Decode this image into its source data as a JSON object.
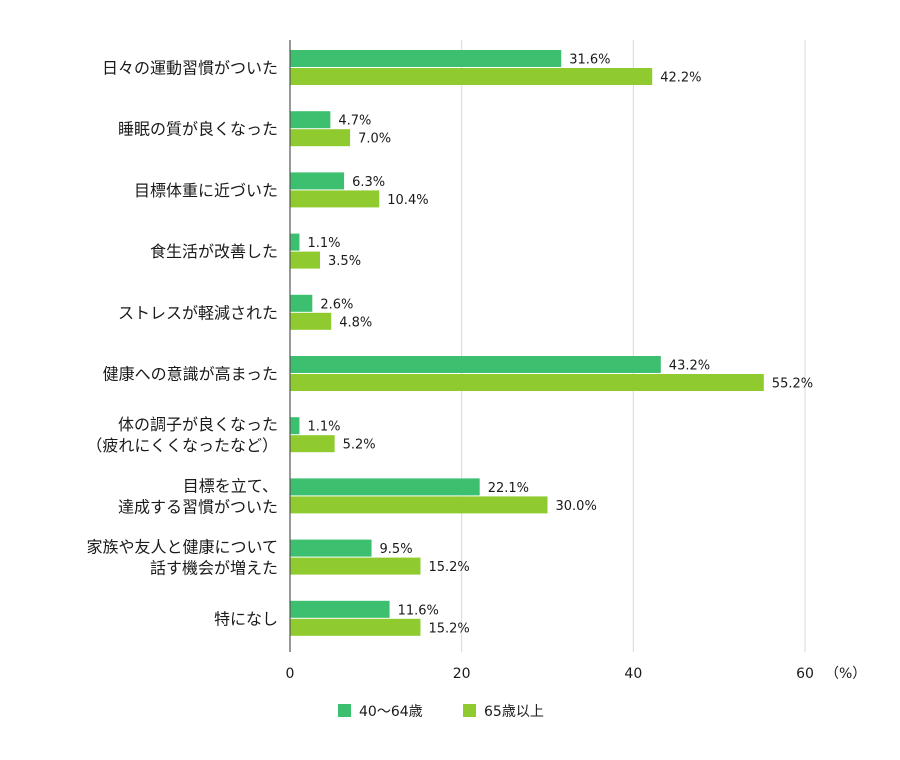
{
  "chart_data": {
    "type": "bar",
    "orientation": "horizontal",
    "categories": [
      [
        "日々の運動習慣がついた"
      ],
      [
        "睡眠の質が良くなった"
      ],
      [
        "目標体重に近づいた"
      ],
      [
        "食生活が改善した"
      ],
      [
        "ストレスが軽減された"
      ],
      [
        "健康への意識が高まった"
      ],
      [
        "体の調子が良くなった",
        "（疲れにくくなったなど）"
      ],
      [
        "目標を立て、",
        "達成する習慣がついた"
      ],
      [
        "家族や友人と健康について",
        "話す機会が増えた"
      ],
      [
        "特になし"
      ]
    ],
    "series": [
      {
        "name": "40〜64歳",
        "color": "#3cbf6e",
        "values": [
          31.6,
          4.7,
          6.3,
          1.1,
          2.6,
          43.2,
          1.1,
          22.1,
          9.5,
          11.6
        ]
      },
      {
        "name": "65歳以上",
        "color": "#8fcb2f",
        "values": [
          42.2,
          7.0,
          10.4,
          3.5,
          4.8,
          55.2,
          5.2,
          30.0,
          15.2,
          15.2
        ]
      }
    ],
    "value_labels": [
      [
        "31.6%",
        "4.7%",
        "6.3%",
        "1.1%",
        "2.6%",
        "43.2%",
        "1.1%",
        "22.1%",
        "9.5%",
        "11.6%"
      ],
      [
        "42.2%",
        "7.0%",
        "10.4%",
        "3.5%",
        "4.8%",
        "55.2%",
        "5.2%",
        "30.0%",
        "15.2%",
        "15.2%"
      ]
    ],
    "xlim": [
      0,
      60
    ],
    "xticks": [
      0,
      20,
      40,
      60
    ],
    "xtick_labels": [
      "0",
      "20",
      "40",
      "60"
    ],
    "x_unit": "（%）",
    "grid": true,
    "legend_position": "bottom"
  }
}
